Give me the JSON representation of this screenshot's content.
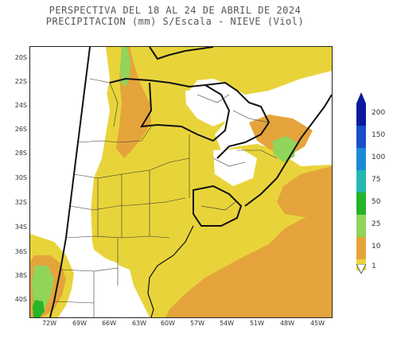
{
  "title": {
    "line1": "PERSPECTIVA DEL 18 AL 24 DE ABRIL DE 2024",
    "line2": "PRECIPITACION (mm) S/Escala - NIEVE (Viol)"
  },
  "axes": {
    "y_labels": [
      "20S",
      "22S",
      "24S",
      "26S",
      "28S",
      "30S",
      "32S",
      "34S",
      "36S",
      "38S",
      "40S"
    ],
    "x_labels": [
      "72W",
      "69W",
      "66W",
      "63W",
      "60W",
      "57W",
      "54W",
      "51W",
      "48W",
      "45W"
    ]
  },
  "legend": {
    "levels": [
      "200",
      "150",
      "100",
      "75",
      "50",
      "25",
      "10",
      "1"
    ],
    "colors": {
      "1_10": "#e8d43a",
      "10_25": "#e5a43b",
      "25_50": "#90d45a",
      "50_75": "#28b428",
      "75_100": "#26b8b0",
      "100_150": "#1e88d8",
      "150_200": "#1a4fc8",
      "200_plus": "#0a1a9a"
    }
  }
}
